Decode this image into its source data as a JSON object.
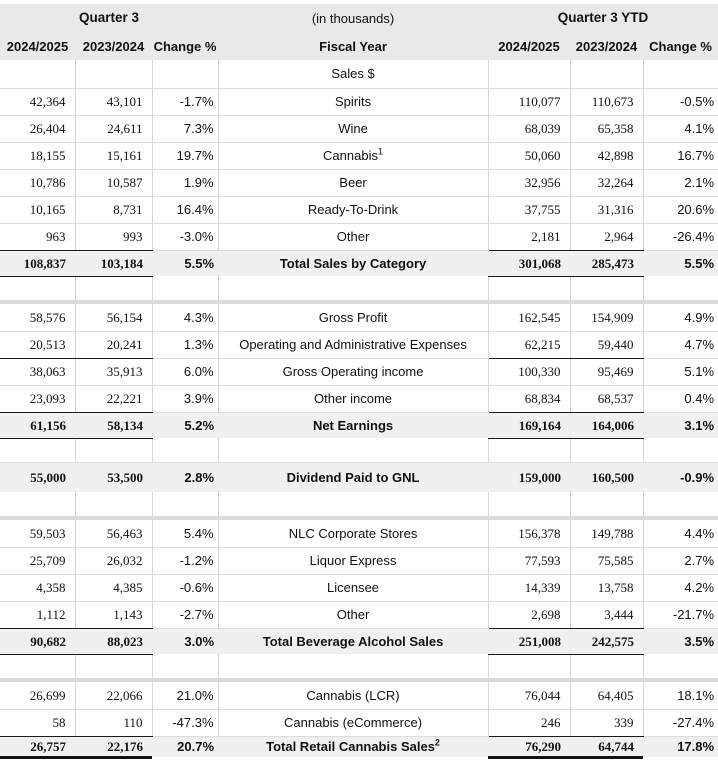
{
  "header": {
    "q3_label": "Quarter 3",
    "thousands_label": "(in thousands)",
    "ytd_label": "Quarter 3 YTD",
    "col_current": "2024/2025",
    "col_prior": "2023/2024",
    "col_change": "Change %",
    "fiscal_year": "Fiscal Year"
  },
  "colors": {
    "header_bg": "#e9e9e9",
    "total_row_bg": "#f0f0f0",
    "spacer_bg": "#d9d9d9",
    "gridline": "#d6d6d6",
    "accounting_rule": "#1a1a1a"
  },
  "rows": [
    {
      "type": "label",
      "label": "Sales $"
    },
    {
      "type": "data",
      "label": "Spirits",
      "q3_cur": "42,364",
      "q3_prior": "43,101",
      "q3_chg": "-1.7%",
      "ytd_cur": "110,077",
      "ytd_prior": "110,673",
      "ytd_chg": "-0.5%"
    },
    {
      "type": "data",
      "label": "Wine",
      "q3_cur": "26,404",
      "q3_prior": "24,611",
      "q3_chg": "7.3%",
      "ytd_cur": "68,039",
      "ytd_prior": "65,358",
      "ytd_chg": "4.1%"
    },
    {
      "type": "data",
      "label": "Cannabis",
      "sup": "1",
      "q3_cur": "18,155",
      "q3_prior": "15,161",
      "q3_chg": "19.7%",
      "ytd_cur": "50,060",
      "ytd_prior": "42,898",
      "ytd_chg": "16.7%"
    },
    {
      "type": "data",
      "label": "Beer",
      "q3_cur": "10,786",
      "q3_prior": "10,587",
      "q3_chg": "1.9%",
      "ytd_cur": "32,956",
      "ytd_prior": "32,264",
      "ytd_chg": "2.1%"
    },
    {
      "type": "data",
      "label": "Ready-To-Drink",
      "q3_cur": "10,165",
      "q3_prior": "8,731",
      "q3_chg": "16.4%",
      "ytd_cur": "37,755",
      "ytd_prior": "31,316",
      "ytd_chg": "20.6%"
    },
    {
      "type": "data",
      "underline": true,
      "label": "Other",
      "q3_cur": "963",
      "q3_prior": "993",
      "q3_chg": "-3.0%",
      "ytd_cur": "2,181",
      "ytd_prior": "2,964",
      "ytd_chg": "-26.4%"
    },
    {
      "type": "total",
      "underline": true,
      "label": "Total Sales by Category",
      "q3_cur": "108,837",
      "q3_prior": "103,184",
      "q3_chg": "5.5%",
      "ytd_cur": "301,068",
      "ytd_prior": "285,473",
      "ytd_chg": "5.5%"
    },
    {
      "type": "blank"
    },
    {
      "type": "spacer"
    },
    {
      "type": "data",
      "label": "Gross Profit",
      "q3_cur": "58,576",
      "q3_prior": "56,154",
      "q3_chg": "4.3%",
      "ytd_cur": "162,545",
      "ytd_prior": "154,909",
      "ytd_chg": "4.9%"
    },
    {
      "type": "data",
      "underline": true,
      "label": "Operating and Administrative Expenses",
      "q3_cur": "20,513",
      "q3_prior": "20,241",
      "q3_chg": "1.3%",
      "ytd_cur": "62,215",
      "ytd_prior": "59,440",
      "ytd_chg": "4.7%"
    },
    {
      "type": "data",
      "label": "Gross Operating income",
      "q3_cur": "38,063",
      "q3_prior": "35,913",
      "q3_chg": "6.0%",
      "ytd_cur": "100,330",
      "ytd_prior": "95,469",
      "ytd_chg": "5.1%"
    },
    {
      "type": "data",
      "underline": true,
      "label": "Other income",
      "q3_cur": "23,093",
      "q3_prior": "22,221",
      "q3_chg": "3.9%",
      "ytd_cur": "68,834",
      "ytd_prior": "68,537",
      "ytd_chg": "0.4%"
    },
    {
      "type": "total",
      "underline": true,
      "label": "Net Earnings",
      "q3_cur": "61,156",
      "q3_prior": "58,134",
      "q3_chg": "5.2%",
      "ytd_cur": "169,164",
      "ytd_prior": "164,006",
      "ytd_chg": "3.1%"
    },
    {
      "type": "blank"
    },
    {
      "type": "dividend",
      "label": "Dividend Paid to GNL",
      "q3_cur": "55,000",
      "q3_prior": "53,500",
      "q3_chg": "2.8%",
      "ytd_cur": "159,000",
      "ytd_prior": "160,500",
      "ytd_chg": "-0.9%"
    },
    {
      "type": "blank"
    },
    {
      "type": "spacer"
    },
    {
      "type": "data",
      "label": "NLC Corporate Stores",
      "q3_cur": "59,503",
      "q3_prior": "56,463",
      "q3_chg": "5.4%",
      "ytd_cur": "156,378",
      "ytd_prior": "149,788",
      "ytd_chg": "4.4%"
    },
    {
      "type": "data",
      "label": "Liquor Express",
      "q3_cur": "25,709",
      "q3_prior": "26,032",
      "q3_chg": "-1.2%",
      "ytd_cur": "77,593",
      "ytd_prior": "75,585",
      "ytd_chg": "2.7%"
    },
    {
      "type": "data",
      "label": "Licensee",
      "q3_cur": "4,358",
      "q3_prior": "4,385",
      "q3_chg": "-0.6%",
      "ytd_cur": "14,339",
      "ytd_prior": "13,758",
      "ytd_chg": "4.2%"
    },
    {
      "type": "data",
      "underline": true,
      "label": "Other",
      "q3_cur": "1,112",
      "q3_prior": "1,143",
      "q3_chg": "-2.7%",
      "ytd_cur": "2,698",
      "ytd_prior": "3,444",
      "ytd_chg": "-21.7%"
    },
    {
      "type": "total",
      "underline": true,
      "label": "Total Beverage Alcohol Sales",
      "q3_cur": "90,682",
      "q3_prior": "88,023",
      "q3_chg": "3.0%",
      "ytd_cur": "251,008",
      "ytd_prior": "242,575",
      "ytd_chg": "3.5%"
    },
    {
      "type": "blank"
    },
    {
      "type": "spacer"
    },
    {
      "type": "data",
      "label": "Cannabis (LCR)",
      "q3_cur": "26,699",
      "q3_prior": "22,066",
      "q3_chg": "21.0%",
      "ytd_cur": "76,044",
      "ytd_prior": "64,405",
      "ytd_chg": "18.1%"
    },
    {
      "type": "data",
      "underline": true,
      "label": "Cannabis (eCommerce)",
      "q3_cur": "58",
      "q3_prior": "110",
      "q3_chg": "-47.3%",
      "ytd_cur": "246",
      "ytd_prior": "339",
      "ytd_chg": "-27.4%"
    },
    {
      "type": "final",
      "label": "Total Retail Cannabis Sales",
      "sup": "2",
      "q3_cur": "26,757",
      "q3_prior": "22,176",
      "q3_chg": "20.7%",
      "ytd_cur": "76,290",
      "ytd_prior": "64,744",
      "ytd_chg": "17.8%"
    }
  ]
}
